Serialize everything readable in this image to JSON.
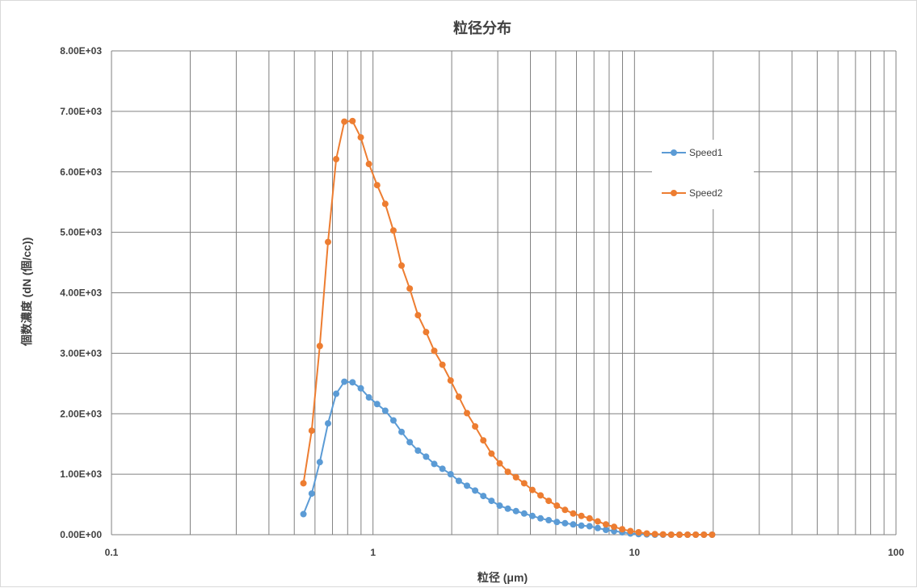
{
  "chart_data": {
    "type": "line",
    "title": "粒径分布",
    "xlabel": "粒径 (μm)",
    "ylabel": "個数濃度 (dN (個/cc))",
    "x_scale": "log",
    "xlim": [
      0.1,
      100
    ],
    "ylim": [
      0,
      8000
    ],
    "x_ticks": [
      0.1,
      1,
      10,
      100
    ],
    "x_tick_labels": [
      "0.1",
      "1",
      "10",
      "100"
    ],
    "y_ticks": [
      0,
      1000,
      2000,
      3000,
      4000,
      5000,
      6000,
      7000,
      8000
    ],
    "y_tick_labels": [
      "0.00E+00",
      "1.00E+03",
      "2.00E+03",
      "3.00E+03",
      "4.00E+03",
      "5.00E+03",
      "6.00E+03",
      "7.00E+03",
      "8.00E+03"
    ],
    "grid": true,
    "legend_position": "top-right",
    "x": [
      0.542,
      0.583,
      0.626,
      0.673,
      0.723,
      0.777,
      0.835,
      0.898,
      0.965,
      1.037,
      1.114,
      1.197,
      1.286,
      1.382,
      1.486,
      1.596,
      1.715,
      1.843,
      1.981,
      2.129,
      2.288,
      2.458,
      2.642,
      2.839,
      3.051,
      3.278,
      3.523,
      3.786,
      4.068,
      4.371,
      4.698,
      5.048,
      5.425,
      5.829,
      6.264,
      6.732,
      7.234,
      7.774,
      8.354,
      8.977,
      9.647,
      10.37,
      11.14,
      11.97,
      12.86,
      13.82,
      14.86,
      15.96,
      17.15,
      18.43,
      19.81
    ],
    "series": [
      {
        "name": "Speed1",
        "color": "#5b9bd5",
        "values": [
          340,
          680,
          1200,
          1840,
          2330,
          2530,
          2520,
          2420,
          2270,
          2160,
          2050,
          1890,
          1700,
          1530,
          1390,
          1290,
          1170,
          1090,
          1000,
          890,
          810,
          730,
          640,
          560,
          480,
          430,
          390,
          350,
          310,
          270,
          240,
          210,
          190,
          170,
          150,
          140,
          110,
          80,
          60,
          40,
          20,
          10,
          5,
          0,
          0,
          0,
          0,
          0,
          0,
          0,
          0
        ]
      },
      {
        "name": "Speed2",
        "color": "#ed7d31",
        "values": [
          850,
          1720,
          3120,
          4840,
          6210,
          6830,
          6840,
          6570,
          6130,
          5780,
          5470,
          5030,
          4450,
          4070,
          3630,
          3350,
          3040,
          2810,
          2550,
          2280,
          2010,
          1790,
          1560,
          1340,
          1180,
          1040,
          950,
          850,
          740,
          650,
          560,
          480,
          410,
          350,
          310,
          270,
          220,
          170,
          130,
          90,
          60,
          40,
          20,
          10,
          5,
          0,
          0,
          0,
          0,
          0,
          0
        ]
      }
    ]
  }
}
